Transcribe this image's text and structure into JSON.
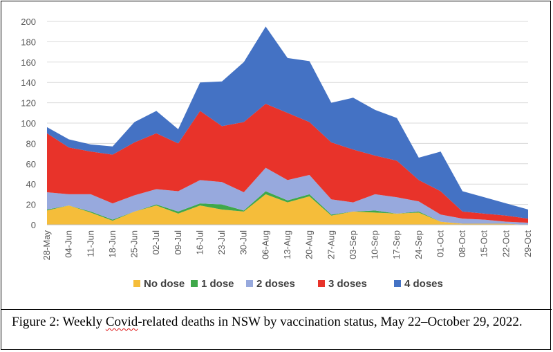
{
  "chart_data": {
    "type": "area",
    "stacked": true,
    "categories": [
      "28-May",
      "04-Jun",
      "11-Jun",
      "18-Jun",
      "25-Jun",
      "02-Jul",
      "09-Jul",
      "16-Jul",
      "23-Jul",
      "30-Jul",
      "06-Aug",
      "13-Aug",
      "20-Aug",
      "27-Aug",
      "03-Sep",
      "10-Sep",
      "17-Sep",
      "24-Sep",
      "01-Oct",
      "08-Oct",
      "15-Oct",
      "22-Oct",
      "29-Oct"
    ],
    "series": [
      {
        "name": "No dose",
        "color": "#F5BD3A",
        "values": [
          14,
          19,
          12,
          4,
          13,
          19,
          11,
          19,
          15,
          13,
          30,
          22,
          28,
          9,
          13,
          12,
          11,
          12,
          3,
          1,
          1,
          1,
          0
        ]
      },
      {
        "name": "1 dose",
        "color": "#3FA84A",
        "values": [
          1,
          0,
          1,
          1,
          0,
          1,
          2,
          2,
          5,
          1,
          3,
          2,
          2,
          1,
          0,
          2,
          0,
          1,
          0,
          0,
          0,
          0,
          0
        ]
      },
      {
        "name": "2 doses",
        "color": "#97A9DD",
        "values": [
          17,
          11,
          17,
          16,
          16,
          15,
          20,
          23,
          22,
          18,
          23,
          20,
          19,
          15,
          9,
          16,
          16,
          10,
          7,
          5,
          4,
          2,
          2
        ]
      },
      {
        "name": "3 doses",
        "color": "#E8332A",
        "values": [
          58,
          46,
          42,
          48,
          52,
          55,
          47,
          68,
          55,
          69,
          63,
          66,
          52,
          56,
          52,
          38,
          36,
          21,
          23,
          7,
          6,
          6,
          4
        ]
      },
      {
        "name": "4 doses",
        "color": "#4472C4",
        "values": [
          6,
          8,
          7,
          8,
          20,
          22,
          14,
          28,
          44,
          59,
          76,
          54,
          60,
          39,
          51,
          45,
          42,
          22,
          39,
          20,
          16,
          12,
          9
        ]
      }
    ],
    "ylim": [
      0,
      200
    ],
    "yticks": [
      "0",
      "20",
      "40",
      "60",
      "80",
      "100",
      "120",
      "140",
      "160",
      "180",
      "200"
    ],
    "grid": true,
    "legend_position": "bottom"
  },
  "caption": {
    "prefix": "Figure 2: Weekly ",
    "word": "Covid",
    "suffix": "-related deaths in NSW by vaccination status, May 22–October 29, 2022."
  }
}
